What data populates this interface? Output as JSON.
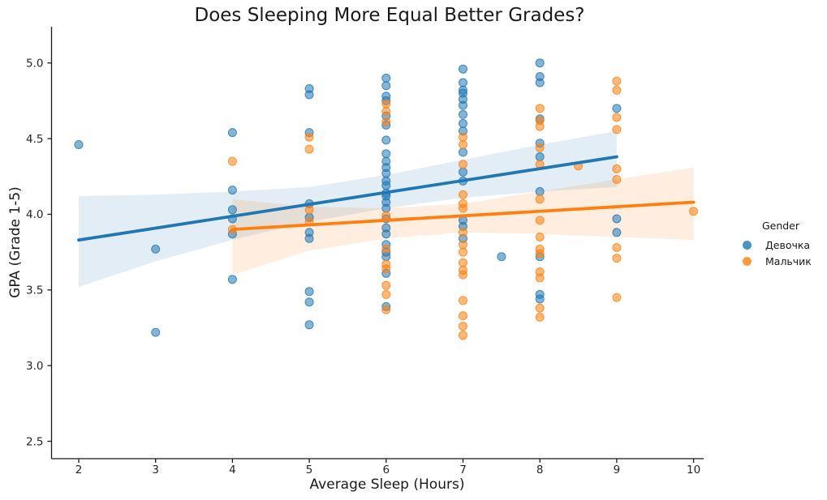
{
  "chart_data": {
    "type": "scatter",
    "title": "Does Sleeping More Equal Better Grades?",
    "xlabel": "Average Sleep (Hours)",
    "ylabel": "GPA (Grade 1-5)",
    "xlim": [
      1.65,
      10.15
    ],
    "ylim": [
      2.39,
      5.24
    ],
    "x_ticks": [
      2,
      3,
      4,
      5,
      6,
      7,
      8,
      9,
      10
    ],
    "y_ticks": [
      2.5,
      3.0,
      3.5,
      4.0,
      4.5,
      5.0
    ],
    "grid": false,
    "legend_title": "Gender",
    "legend_position": "center-right-outside",
    "series": [
      {
        "name": "Девочка",
        "color": "#1f77b4",
        "marker": "circle",
        "points": [
          [
            2,
            4.46
          ],
          [
            3,
            3.77
          ],
          [
            3,
            3.22
          ],
          [
            4,
            4.54
          ],
          [
            4,
            4.16
          ],
          [
            4,
            4.03
          ],
          [
            4,
            3.97
          ],
          [
            4,
            3.87
          ],
          [
            4,
            3.57
          ],
          [
            5,
            4.83
          ],
          [
            5,
            4.79
          ],
          [
            5,
            4.54
          ],
          [
            5,
            4.07
          ],
          [
            5,
            3.98
          ],
          [
            5,
            3.88
          ],
          [
            5,
            3.84
          ],
          [
            5,
            3.49
          ],
          [
            5,
            3.42
          ],
          [
            5,
            3.27
          ],
          [
            6,
            4.9
          ],
          [
            6,
            4.85
          ],
          [
            6,
            4.78
          ],
          [
            6,
            4.75
          ],
          [
            6,
            4.65
          ],
          [
            6,
            4.59
          ],
          [
            6,
            4.49
          ],
          [
            6,
            4.4
          ],
          [
            6,
            4.35
          ],
          [
            6,
            4.31
          ],
          [
            6,
            4.27
          ],
          [
            6,
            4.22
          ],
          [
            6,
            4.19
          ],
          [
            6,
            4.14
          ],
          [
            6,
            4.12
          ],
          [
            6,
            4.08
          ],
          [
            6,
            4.04
          ],
          [
            6,
            3.97
          ],
          [
            6,
            3.91
          ],
          [
            6,
            3.87
          ],
          [
            6,
            3.8
          ],
          [
            6,
            3.75
          ],
          [
            6,
            3.72
          ],
          [
            6,
            3.61
          ],
          [
            6,
            3.39
          ],
          [
            7,
            4.96
          ],
          [
            7,
            4.87
          ],
          [
            7,
            4.82
          ],
          [
            7,
            4.8
          ],
          [
            7,
            4.76
          ],
          [
            7,
            4.72
          ],
          [
            7,
            4.66
          ],
          [
            7,
            4.6
          ],
          [
            7,
            4.55
          ],
          [
            7,
            4.41
          ],
          [
            7,
            4.28
          ],
          [
            7,
            4.22
          ],
          [
            7,
            3.96
          ],
          [
            7,
            3.92
          ],
          [
            7,
            3.84
          ],
          [
            7.5,
            3.72
          ],
          [
            8,
            5.0
          ],
          [
            8,
            4.91
          ],
          [
            8,
            4.87
          ],
          [
            8,
            4.63
          ],
          [
            8,
            4.47
          ],
          [
            8,
            4.38
          ],
          [
            8,
            4.15
          ],
          [
            8,
            3.72
          ],
          [
            8,
            3.47
          ],
          [
            8,
            3.44
          ],
          [
            9,
            4.7
          ],
          [
            9,
            3.97
          ],
          [
            9,
            3.88
          ]
        ],
        "regression": {
          "x": [
            2,
            9
          ],
          "y": [
            3.83,
            4.38
          ]
        },
        "ci_band": [
          [
            2,
            3.52,
            4.12
          ],
          [
            3,
            3.69,
            4.13
          ],
          [
            4,
            3.83,
            4.15
          ],
          [
            5,
            3.95,
            4.18
          ],
          [
            6,
            4.04,
            4.26
          ],
          [
            7,
            4.11,
            4.36
          ],
          [
            8,
            4.15,
            4.46
          ],
          [
            9,
            4.18,
            4.55
          ]
        ]
      },
      {
        "name": "Мальчик",
        "color": "#ff7f0e",
        "marker": "circle",
        "points": [
          [
            4,
            4.35
          ],
          [
            4,
            3.9
          ],
          [
            5,
            4.51
          ],
          [
            5,
            4.43
          ],
          [
            5,
            4.03
          ],
          [
            5,
            3.95
          ],
          [
            6,
            4.73
          ],
          [
            6,
            4.68
          ],
          [
            6,
            4.61
          ],
          [
            6,
            3.99
          ],
          [
            6,
            3.77
          ],
          [
            6,
            3.67
          ],
          [
            6,
            3.64
          ],
          [
            6,
            3.53
          ],
          [
            6,
            3.47
          ],
          [
            6,
            3.37
          ],
          [
            7,
            4.51
          ],
          [
            7,
            4.46
          ],
          [
            7,
            4.33
          ],
          [
            7,
            4.13
          ],
          [
            7,
            4.07
          ],
          [
            7,
            4.04
          ],
          [
            7,
            3.88
          ],
          [
            7,
            3.8
          ],
          [
            7,
            3.75
          ],
          [
            7,
            3.68
          ],
          [
            7,
            3.63
          ],
          [
            7,
            3.6
          ],
          [
            7,
            3.43
          ],
          [
            7,
            3.33
          ],
          [
            7,
            3.26
          ],
          [
            7,
            3.2
          ],
          [
            8,
            4.7
          ],
          [
            8,
            4.62
          ],
          [
            8,
            4.58
          ],
          [
            8,
            4.44
          ],
          [
            8,
            4.33
          ],
          [
            8,
            4.1
          ],
          [
            8,
            3.96
          ],
          [
            8,
            3.85
          ],
          [
            8,
            3.77
          ],
          [
            8,
            3.74
          ],
          [
            8,
            3.62
          ],
          [
            8,
            3.58
          ],
          [
            8,
            3.38
          ],
          [
            8,
            3.32
          ],
          [
            8.5,
            4.32
          ],
          [
            9,
            4.88
          ],
          [
            9,
            4.82
          ],
          [
            9,
            4.64
          ],
          [
            9,
            4.56
          ],
          [
            9,
            4.3
          ],
          [
            9,
            4.23
          ],
          [
            9,
            3.78
          ],
          [
            9,
            3.71
          ],
          [
            9,
            3.45
          ],
          [
            10,
            4.02
          ]
        ],
        "regression": {
          "x": [
            4,
            10
          ],
          "y": [
            3.9,
            4.08
          ]
        },
        "ci_band": [
          [
            4,
            3.6,
            4.1
          ],
          [
            5,
            3.76,
            4.05
          ],
          [
            6,
            3.84,
            4.04
          ],
          [
            7,
            3.88,
            4.07
          ],
          [
            8,
            3.87,
            4.15
          ],
          [
            9,
            3.85,
            4.23
          ],
          [
            10,
            3.83,
            4.31
          ]
        ]
      }
    ]
  }
}
